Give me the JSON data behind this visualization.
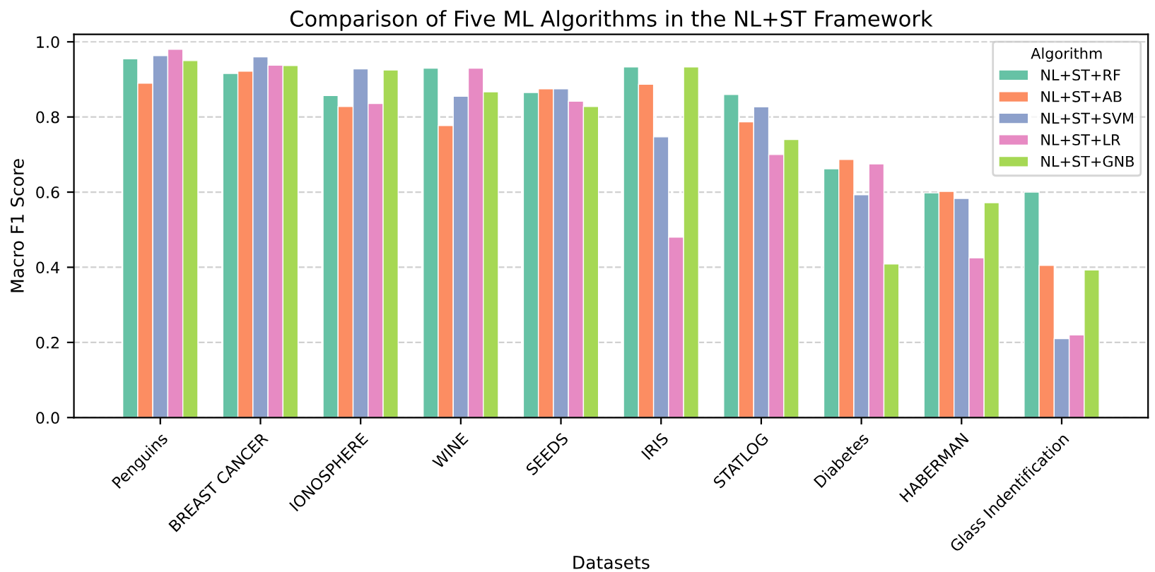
{
  "chart_data": {
    "type": "bar",
    "title": "Comparison of Five ML Algorithms in the NL+ST Framework",
    "xlabel": "Datasets",
    "ylabel": "Macro F1 Score",
    "legend_title": "Algorithm",
    "categories": [
      "Penguins",
      "BREAST CANCER",
      "IONOSPHERE",
      "WINE",
      "SEEDS",
      "IRIS",
      "STATLOG",
      "Diabetes",
      "HABERMAN",
      "Glass Indentification"
    ],
    "series": [
      {
        "name": "NL+ST+RF",
        "color": "#66c2a5",
        "values": [
          0.955,
          0.916,
          0.857,
          0.93,
          0.865,
          0.933,
          0.86,
          0.662,
          0.598,
          0.6
        ]
      },
      {
        "name": "NL+ST+AB",
        "color": "#fc8d62",
        "values": [
          0.89,
          0.922,
          0.828,
          0.777,
          0.875,
          0.887,
          0.787,
          0.687,
          0.602,
          0.405
        ]
      },
      {
        "name": "NL+ST+SVM",
        "color": "#8da0cb",
        "values": [
          0.963,
          0.96,
          0.928,
          0.855,
          0.875,
          0.747,
          0.827,
          0.593,
          0.583,
          0.21
        ]
      },
      {
        "name": "NL+ST+LR",
        "color": "#e78ac3",
        "values": [
          0.98,
          0.938,
          0.836,
          0.93,
          0.842,
          0.48,
          0.7,
          0.675,
          0.425,
          0.22
        ]
      },
      {
        "name": "NL+ST+GNB",
        "color": "#a6d854",
        "values": [
          0.95,
          0.937,
          0.925,
          0.867,
          0.828,
          0.933,
          0.74,
          0.409,
          0.572,
          0.393
        ]
      }
    ],
    "ylim": [
      0,
      1.02
    ],
    "yticks": [
      {
        "value": 0,
        "label": "0.0"
      },
      {
        "value": 0.2,
        "label": "0.2"
      },
      {
        "value": 0.4,
        "label": "0.4"
      },
      {
        "value": 0.6,
        "label": "0.6"
      },
      {
        "value": 0.8,
        "label": "0.8"
      },
      {
        "value": 1.0,
        "label": "1.0"
      }
    ],
    "grid": "y",
    "legend": "top right"
  }
}
